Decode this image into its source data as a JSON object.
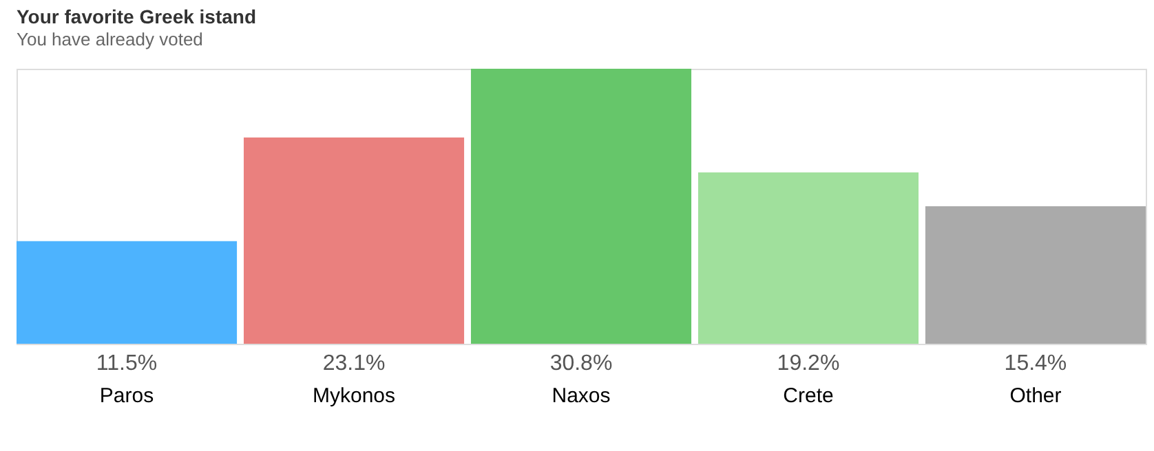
{
  "chart_data": {
    "type": "bar",
    "title": "Your favorite Greek istand",
    "subtitle": "You have already voted",
    "categories": [
      "Paros",
      "Mykonos",
      "Naxos",
      "Crete",
      "Other"
    ],
    "values": [
      11.5,
      23.1,
      30.8,
      19.2,
      15.4
    ],
    "value_labels": [
      "11.5%",
      "23.1%",
      "30.8%",
      "19.2%",
      "15.4%"
    ],
    "colors": [
      "#4db3fe",
      "#ea807e",
      "#66c66a",
      "#a0e09c",
      "#aaaaaa"
    ],
    "grid": false,
    "legend": false
  }
}
